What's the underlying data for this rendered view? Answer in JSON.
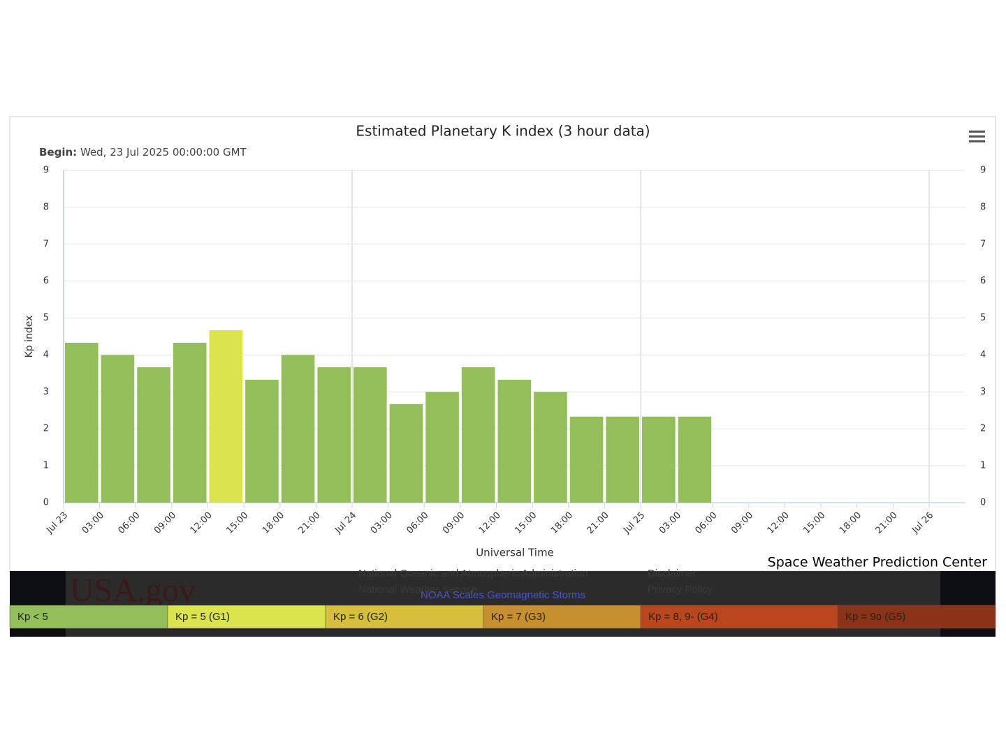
{
  "chart_data": {
    "type": "bar",
    "title": "Estimated Planetary K index (3 hour data)",
    "subtitle": {
      "label": "Begin:",
      "text": "Wed, 23 Jul 2025 00:00:00 GMT"
    },
    "y_label": "Kp index",
    "x_label": "Universal Time",
    "credits": "Space Weather Prediction Center",
    "xticks": [
      "Jul 23",
      "03:00",
      "06:00",
      "09:00",
      "12:00",
      "15:00",
      "18:00",
      "21:00",
      "Jul 24",
      "03:00",
      "06:00",
      "09:00",
      "12:00",
      "15:00",
      "18:00",
      "21:00",
      "Jul 25",
      "03:00",
      "06:00",
      "09:00",
      "12:00",
      "15:00",
      "18:00",
      "21:00",
      "Jul 26"
    ],
    "values": [
      4.33,
      4,
      3.67,
      4.33,
      4.67,
      3.33,
      4,
      3.67,
      3.67,
      2.67,
      3,
      3.67,
      3.33,
      3,
      2.33,
      2.33,
      2.33,
      2.33
    ],
    "colors": [
      "#93bf5a",
      "#93bf5a",
      "#93bf5a",
      "#93bf5a",
      "#dbe44c",
      "#93bf5a",
      "#93bf5a",
      "#93bf5a",
      "#93bf5a",
      "#93bf5a",
      "#93bf5a",
      "#93bf5a",
      "#93bf5a",
      "#93bf5a",
      "#93bf5a",
      "#93bf5a",
      "#93bf5a",
      "#93bf5a"
    ],
    "ylim": [
      0,
      9
    ],
    "yticks": [
      0,
      1,
      2,
      3,
      4,
      5,
      6,
      7,
      8,
      9
    ],
    "y2lim": [
      0,
      9
    ],
    "y2ticks": [
      0,
      1,
      2,
      3,
      4,
      5,
      6,
      7,
      8,
      9
    ],
    "grid": true,
    "legend": [
      {
        "name": "Kp < 5",
        "color": "#93bf5a"
      },
      {
        "name": "Kp = 5 (G1)",
        "color": "#dbe44c"
      },
      {
        "name": "Kp = 6 (G2)",
        "color": "#d6bf3d"
      },
      {
        "name": "Kp = 7 (G3)",
        "color": "#c88f2f"
      },
      {
        "name": "Kp = 8, 9- (G4)",
        "color": "#b9461c"
      },
      {
        "name": "Kp = 9o (G5)",
        "color": "#8a3316"
      }
    ]
  },
  "footer": {
    "links": [
      "National Oceanic and Atmospheric Administration",
      "National Weather Service",
      "Disclaimer",
      "Privacy Policy"
    ],
    "scales_title": "NOAA Scales Geomagnetic Storms",
    "logo": "USA.gov"
  }
}
